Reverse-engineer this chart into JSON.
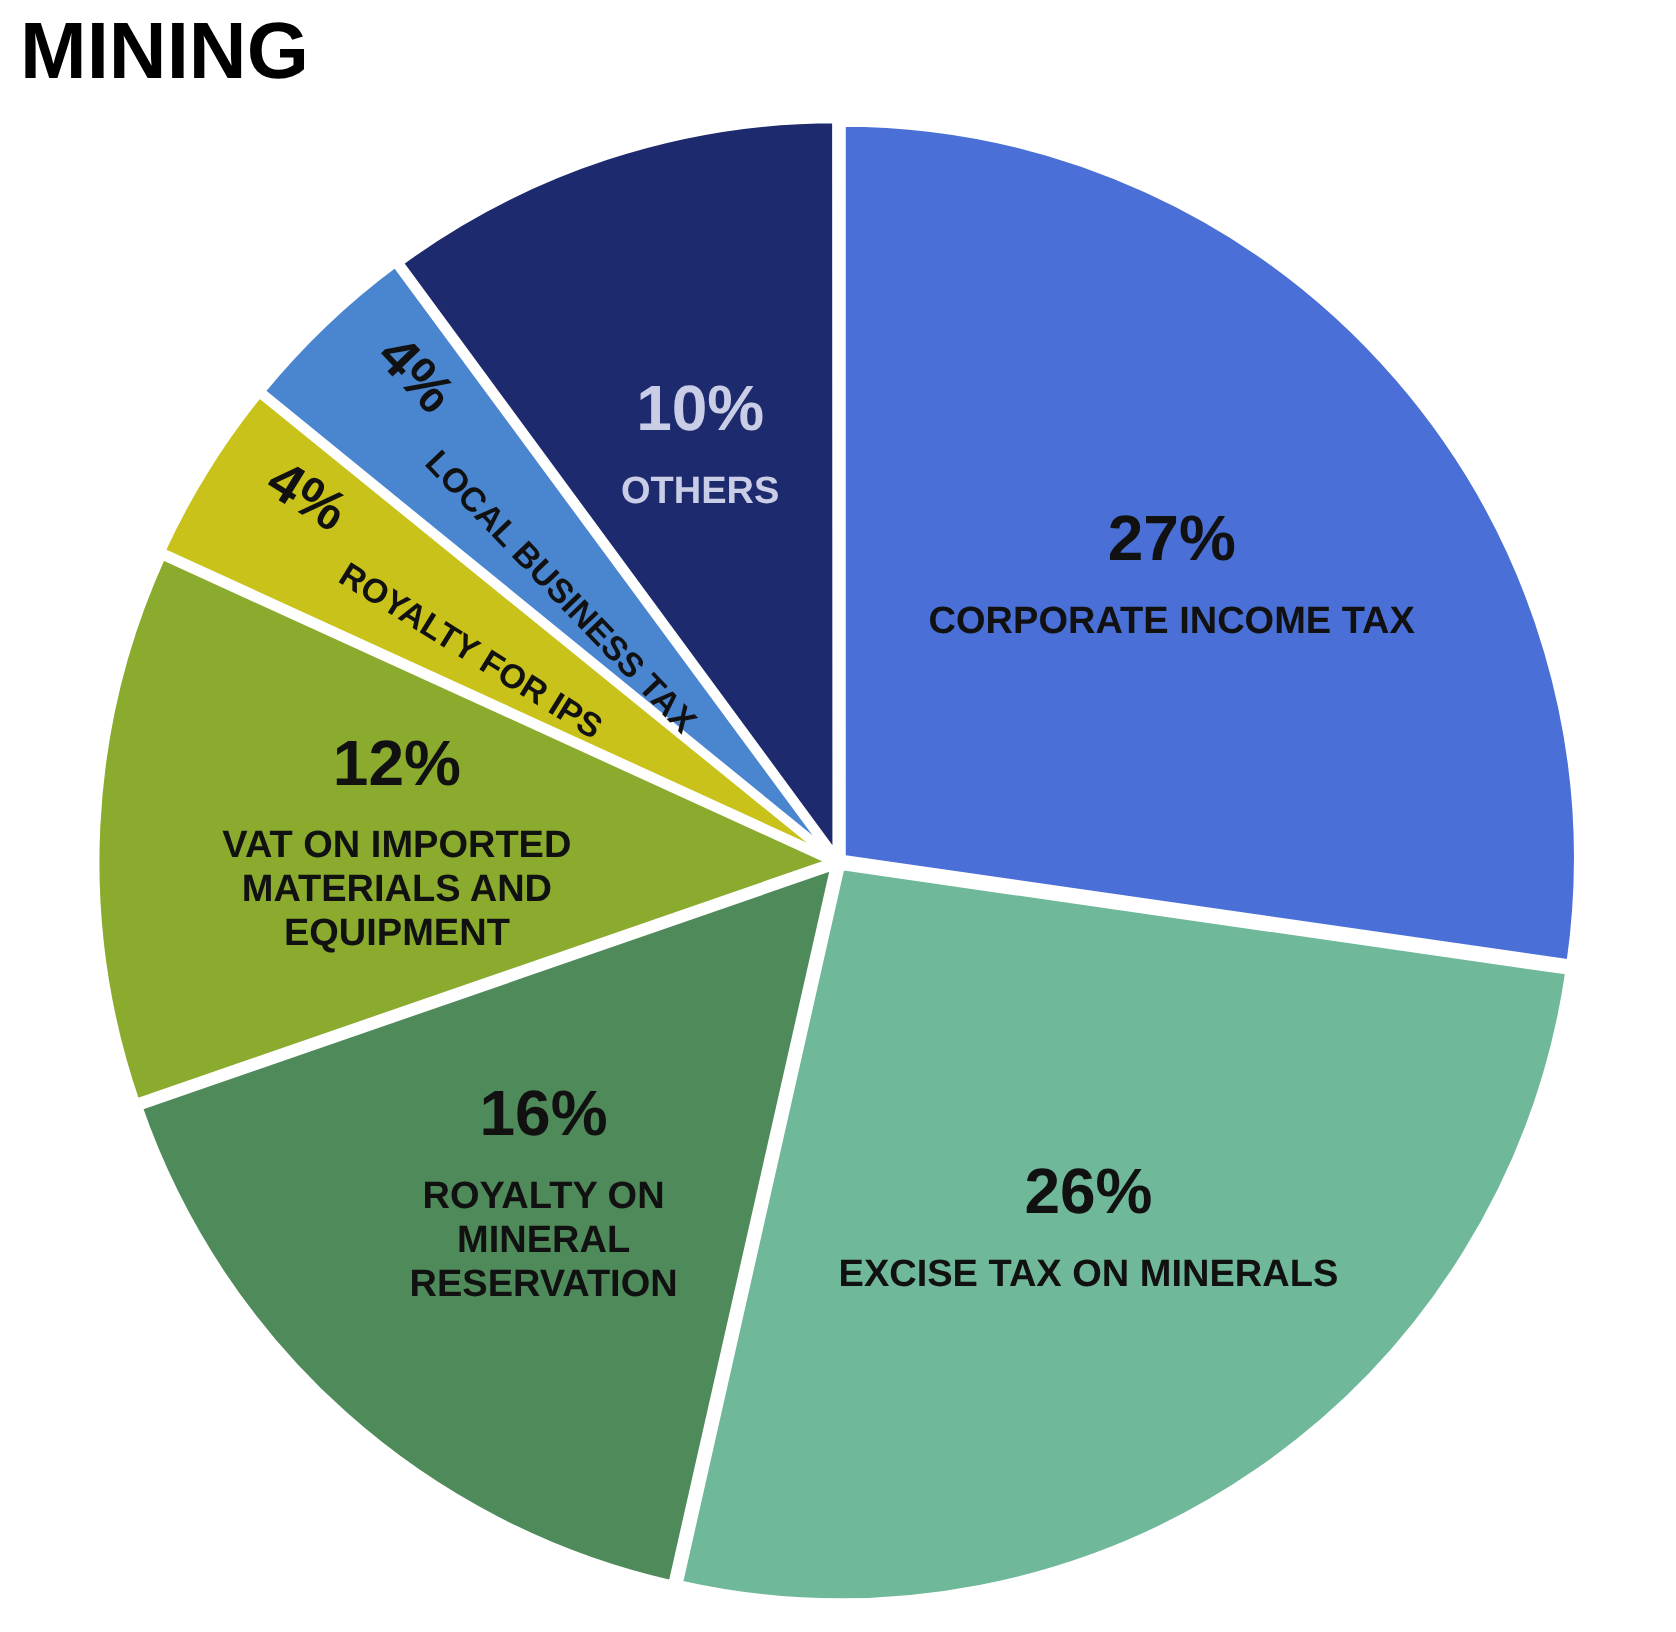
{
  "chart_data": {
    "type": "pie",
    "title": "MINING",
    "categories": [
      "CORPORATE INCOME TAX",
      "EXCISE TAX ON MINERALS",
      "ROYALTY ON MINERAL RESERVATION",
      "VAT ON IMPORTED MATERIALS AND EQUIPMENT",
      "ROYALTY FOR IPS",
      "LOCAL BUSINESS TAX",
      "OTHERS"
    ],
    "values": [
      27,
      26,
      16,
      12,
      4,
      4,
      10
    ],
    "value_labels": [
      "27%",
      "26%",
      "16%",
      "12%",
      "4%",
      "4%",
      "10%"
    ],
    "colors": [
      "#4a6fd6",
      "#6fb89a",
      "#4f8a5a",
      "#8aab2e",
      "#c8c21a",
      "#4a86d0",
      "#1e2a6e"
    ],
    "legend": false
  }
}
